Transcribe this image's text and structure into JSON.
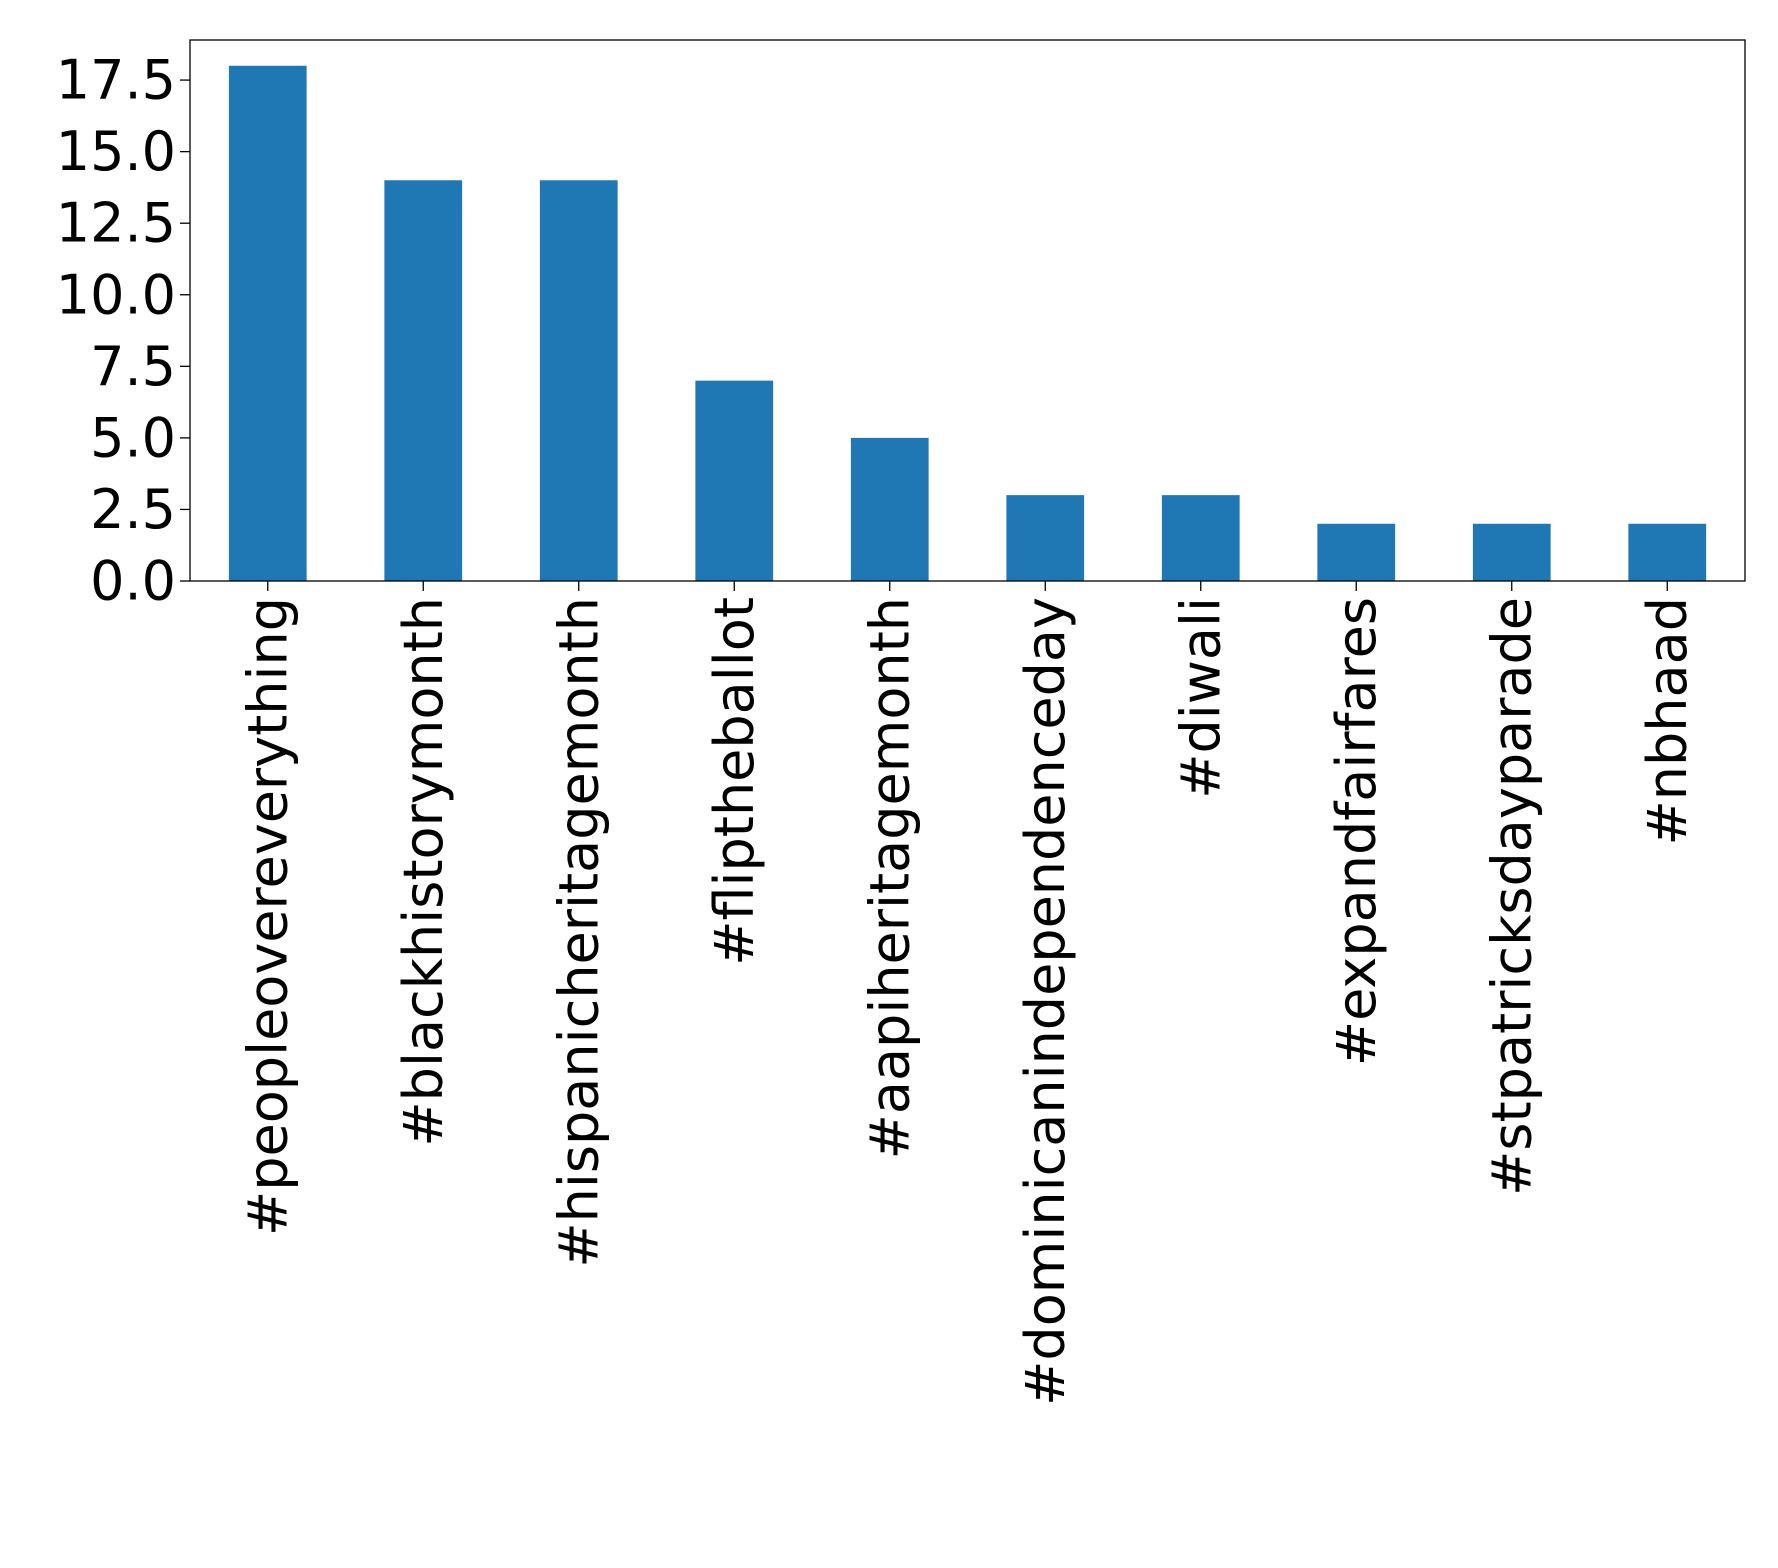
{
  "chart_data": {
    "type": "bar",
    "title": "",
    "xlabel": "",
    "ylabel": "",
    "categories": [
      "#peopleovereverything",
      "#blackhistorymonth",
      "#hispanicheritagemonth",
      "#fliptheballot",
      "#aapiheritagemonth",
      "#dominicanindependenceday",
      "#diwali",
      "#expandfairfares",
      "#stpatricksdayparade",
      "#nbhaad"
    ],
    "values": [
      18,
      14,
      14,
      7,
      5,
      3,
      3,
      2,
      2,
      2
    ],
    "ylim": [
      0,
      18.9
    ],
    "yticks": [
      "0.0",
      "2.5",
      "5.0",
      "7.5",
      "10.0",
      "12.5",
      "15.0",
      "17.5"
    ],
    "ytick_values": [
      0,
      2.5,
      5,
      7.5,
      10,
      12.5,
      15,
      17.5
    ],
    "grid": false,
    "legend": "none",
    "bar_color": "#1f77b4",
    "axis_color": "#000000"
  }
}
